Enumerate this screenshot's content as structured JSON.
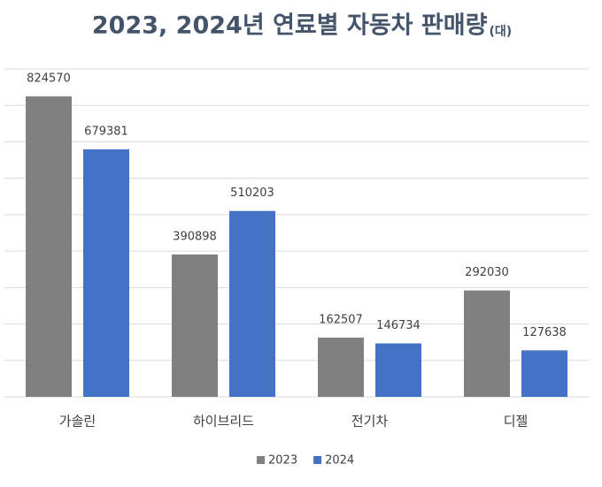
{
  "chart_data": {
    "type": "bar",
    "title": "2023, 2024년 연료별 자동차 판매량",
    "title_unit": "(대)",
    "categories": [
      "가솔린",
      "하이브리드",
      "전기차",
      "디젤"
    ],
    "series": [
      {
        "name": "2023",
        "color": "#808080",
        "values": [
          824570,
          390898,
          162507,
          292030
        ]
      },
      {
        "name": "2024",
        "color": "#4472c4",
        "values": [
          679381,
          510203,
          146734,
          127638
        ]
      }
    ],
    "ylim": [
      0,
      900000
    ],
    "yticks": [
      0,
      100000,
      200000,
      300000,
      400000,
      500000,
      600000,
      700000,
      800000,
      900000
    ],
    "show_ytick_labels": false,
    "grid": true,
    "legend": "bottom"
  }
}
